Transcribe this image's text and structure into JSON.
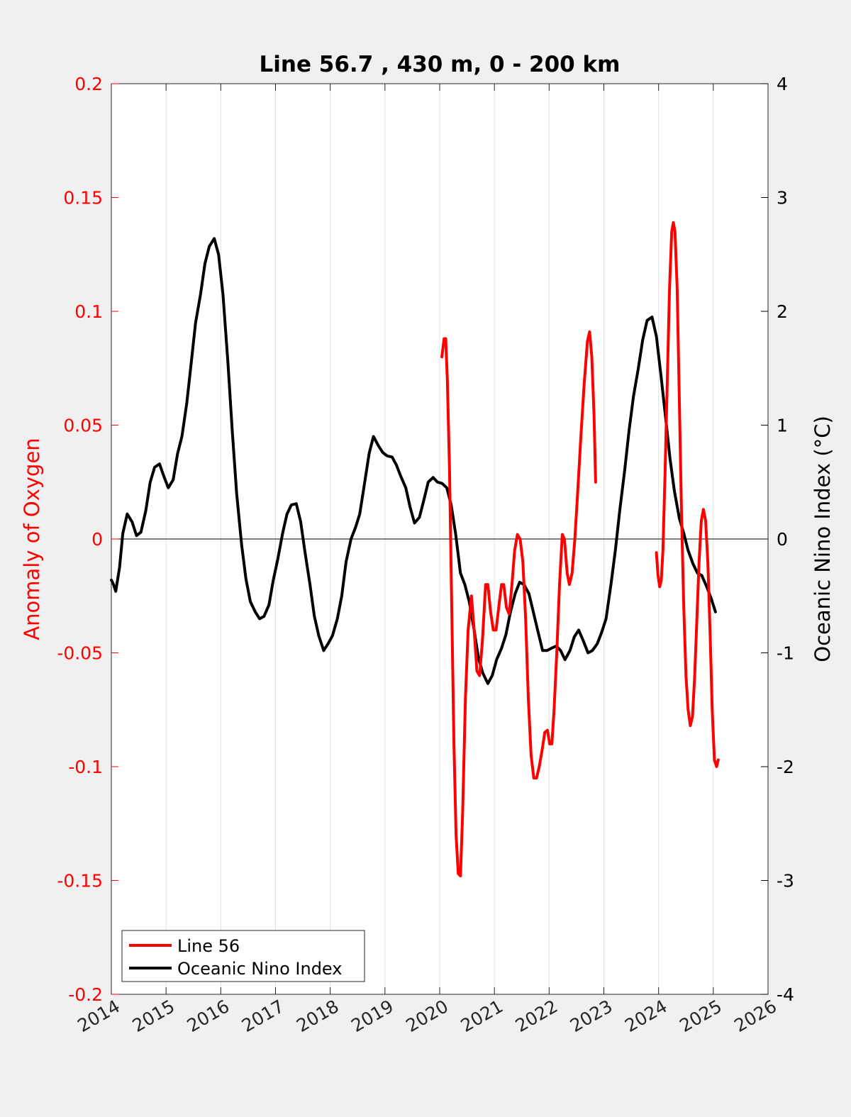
{
  "chart_data": {
    "type": "line",
    "title": "Line 56.7 , 430 m, 0 - 200 km",
    "xlabel": "",
    "ylabel_left": "Anomaly of Oxygen",
    "ylabel_right": "Oceanic Nino Index (°C)",
    "xlim": [
      2014,
      2026
    ],
    "ylim_left": [
      -0.2,
      0.2
    ],
    "ylim_right": [
      -4,
      4
    ],
    "x_ticks": [
      "2014",
      "2015",
      "2016",
      "2017",
      "2018",
      "2019",
      "2020",
      "2021",
      "2022",
      "2023",
      "2024",
      "2025",
      "2026"
    ],
    "y_left_ticks": [
      "0.2",
      "0.15",
      "0.1",
      "0.05",
      "0",
      "-0.05",
      "-0.1",
      "-0.15",
      "-0.2"
    ],
    "y_right_ticks": [
      "4",
      "3",
      "2",
      "1",
      "0",
      "-1",
      "-2",
      "-3",
      "-4"
    ],
    "grid": "vertical",
    "legend_position": "bottom-left",
    "colors": {
      "line56": "#ff0000",
      "oni": "#000000",
      "left_axis": "#ff0000",
      "right_axis": "#000000"
    },
    "series": [
      {
        "name": "Line 56",
        "axis": "left",
        "segments": [
          [
            [
              2020.04,
              0.08
            ],
            [
              2020.08,
              0.088
            ],
            [
              2020.11,
              0.088
            ],
            [
              2020.14,
              0.07
            ],
            [
              2020.18,
              0.03
            ],
            [
              2020.22,
              -0.03
            ],
            [
              2020.26,
              -0.09
            ],
            [
              2020.3,
              -0.13
            ],
            [
              2020.34,
              -0.147
            ],
            [
              2020.38,
              -0.148
            ],
            [
              2020.42,
              -0.12
            ],
            [
              2020.47,
              -0.07
            ],
            [
              2020.52,
              -0.04
            ],
            [
              2020.58,
              -0.025
            ],
            [
              2020.63,
              -0.04
            ],
            [
              2020.68,
              -0.058
            ],
            [
              2020.73,
              -0.06
            ],
            [
              2020.78,
              -0.045
            ],
            [
              2020.84,
              -0.02
            ],
            [
              2020.88,
              -0.02
            ],
            [
              2020.93,
              -0.032
            ],
            [
              2020.98,
              -0.04
            ],
            [
              2021.03,
              -0.04
            ],
            [
              2021.08,
              -0.03
            ],
            [
              2021.13,
              -0.02
            ],
            [
              2021.17,
              -0.02
            ],
            [
              2021.22,
              -0.03
            ],
            [
              2021.27,
              -0.033
            ],
            [
              2021.32,
              -0.02
            ],
            [
              2021.37,
              -0.005
            ],
            [
              2021.42,
              0.002
            ],
            [
              2021.47,
              0.0
            ],
            [
              2021.52,
              -0.01
            ],
            [
              2021.57,
              -0.035
            ],
            [
              2021.62,
              -0.07
            ],
            [
              2021.67,
              -0.095
            ],
            [
              2021.72,
              -0.105
            ],
            [
              2021.77,
              -0.105
            ],
            [
              2021.82,
              -0.1
            ],
            [
              2021.87,
              -0.093
            ],
            [
              2021.92,
              -0.085
            ],
            [
              2021.97,
              -0.084
            ],
            [
              2022.01,
              -0.09
            ],
            [
              2022.05,
              -0.09
            ],
            [
              2022.09,
              -0.075
            ],
            [
              2022.14,
              -0.05
            ],
            [
              2022.19,
              -0.02
            ],
            [
              2022.24,
              0.002
            ],
            [
              2022.28,
              0.0
            ],
            [
              2022.33,
              -0.015
            ],
            [
              2022.37,
              -0.02
            ],
            [
              2022.42,
              -0.015
            ],
            [
              2022.47,
              0.0
            ],
            [
              2022.52,
              0.02
            ],
            [
              2022.58,
              0.045
            ],
            [
              2022.64,
              0.068
            ],
            [
              2022.7,
              0.087
            ],
            [
              2022.74,
              0.091
            ],
            [
              2022.78,
              0.08
            ],
            [
              2022.82,
              0.055
            ],
            [
              2022.85,
              0.025
            ]
          ],
          [
            [
              2023.96,
              -0.006
            ],
            [
              2023.99,
              -0.016
            ],
            [
              2024.02,
              -0.021
            ],
            [
              2024.05,
              -0.018
            ],
            [
              2024.08,
              -0.005
            ],
            [
              2024.12,
              0.03
            ],
            [
              2024.16,
              0.07
            ],
            [
              2024.2,
              0.11
            ],
            [
              2024.24,
              0.135
            ],
            [
              2024.27,
              0.139
            ],
            [
              2024.3,
              0.135
            ],
            [
              2024.34,
              0.11
            ],
            [
              2024.38,
              0.06
            ],
            [
              2024.42,
              0.01
            ],
            [
              2024.46,
              -0.03
            ],
            [
              2024.5,
              -0.06
            ],
            [
              2024.54,
              -0.075
            ],
            [
              2024.58,
              -0.082
            ],
            [
              2024.62,
              -0.078
            ],
            [
              2024.66,
              -0.06
            ],
            [
              2024.7,
              -0.035
            ],
            [
              2024.74,
              -0.01
            ],
            [
              2024.78,
              0.008
            ],
            [
              2024.82,
              0.013
            ],
            [
              2024.86,
              0.008
            ],
            [
              2024.9,
              -0.01
            ],
            [
              2024.94,
              -0.04
            ],
            [
              2024.98,
              -0.075
            ],
            [
              2025.02,
              -0.097
            ],
            [
              2025.06,
              -0.1
            ],
            [
              2025.09,
              -0.097
            ]
          ]
        ]
      },
      {
        "name": "Oceanic Nino Index",
        "axis": "right",
        "segments": [
          [
            [
              2014.0,
              -0.36
            ],
            [
              2014.04,
              -0.4
            ],
            [
              2014.08,
              -0.46
            ],
            [
              2014.15,
              -0.25
            ],
            [
              2014.21,
              0.05
            ],
            [
              2014.29,
              0.22
            ],
            [
              2014.38,
              0.15
            ],
            [
              2014.46,
              0.03
            ],
            [
              2014.54,
              0.06
            ],
            [
              2014.63,
              0.25
            ],
            [
              2014.71,
              0.5
            ],
            [
              2014.79,
              0.63
            ],
            [
              2014.88,
              0.66
            ],
            [
              2014.96,
              0.55
            ],
            [
              2015.04,
              0.45
            ],
            [
              2015.13,
              0.52
            ],
            [
              2015.21,
              0.75
            ],
            [
              2015.29,
              0.9
            ],
            [
              2015.38,
              1.2
            ],
            [
              2015.46,
              1.55
            ],
            [
              2015.54,
              1.9
            ],
            [
              2015.63,
              2.15
            ],
            [
              2015.71,
              2.42
            ],
            [
              2015.79,
              2.57
            ],
            [
              2015.88,
              2.64
            ],
            [
              2015.96,
              2.5
            ],
            [
              2016.04,
              2.15
            ],
            [
              2016.13,
              1.55
            ],
            [
              2016.21,
              0.95
            ],
            [
              2016.29,
              0.4
            ],
            [
              2016.38,
              -0.05
            ],
            [
              2016.46,
              -0.35
            ],
            [
              2016.54,
              -0.55
            ],
            [
              2016.63,
              -0.64
            ],
            [
              2016.71,
              -0.7
            ],
            [
              2016.79,
              -0.68
            ],
            [
              2016.88,
              -0.58
            ],
            [
              2016.96,
              -0.36
            ],
            [
              2017.04,
              -0.18
            ],
            [
              2017.13,
              0.05
            ],
            [
              2017.21,
              0.22
            ],
            [
              2017.29,
              0.3
            ],
            [
              2017.38,
              0.31
            ],
            [
              2017.46,
              0.15
            ],
            [
              2017.54,
              -0.12
            ],
            [
              2017.63,
              -0.4
            ],
            [
              2017.71,
              -0.68
            ],
            [
              2017.79,
              -0.85
            ],
            [
              2017.88,
              -0.98
            ],
            [
              2017.96,
              -0.92
            ],
            [
              2018.04,
              -0.85
            ],
            [
              2018.13,
              -0.7
            ],
            [
              2018.21,
              -0.5
            ],
            [
              2018.29,
              -0.2
            ],
            [
              2018.38,
              0.0
            ],
            [
              2018.46,
              0.1
            ],
            [
              2018.54,
              0.22
            ],
            [
              2018.63,
              0.5
            ],
            [
              2018.71,
              0.75
            ],
            [
              2018.79,
              0.9
            ],
            [
              2018.88,
              0.82
            ],
            [
              2018.96,
              0.76
            ],
            [
              2019.04,
              0.73
            ],
            [
              2019.13,
              0.72
            ],
            [
              2019.21,
              0.65
            ],
            [
              2019.29,
              0.55
            ],
            [
              2019.38,
              0.45
            ],
            [
              2019.46,
              0.28
            ],
            [
              2019.54,
              0.14
            ],
            [
              2019.63,
              0.19
            ],
            [
              2019.71,
              0.34
            ],
            [
              2019.79,
              0.5
            ],
            [
              2019.88,
              0.54
            ],
            [
              2019.96,
              0.5
            ],
            [
              2020.04,
              0.49
            ],
            [
              2020.13,
              0.45
            ],
            [
              2020.21,
              0.3
            ],
            [
              2020.29,
              0.05
            ],
            [
              2020.38,
              -0.3
            ],
            [
              2020.46,
              -0.4
            ],
            [
              2020.54,
              -0.55
            ],
            [
              2020.63,
              -0.8
            ],
            [
              2020.71,
              -1.05
            ],
            [
              2020.79,
              -1.18
            ],
            [
              2020.88,
              -1.27
            ],
            [
              2020.96,
              -1.2
            ],
            [
              2021.04,
              -1.06
            ],
            [
              2021.13,
              -0.96
            ],
            [
              2021.21,
              -0.84
            ],
            [
              2021.29,
              -0.65
            ],
            [
              2021.38,
              -0.48
            ],
            [
              2021.46,
              -0.38
            ],
            [
              2021.54,
              -0.4
            ],
            [
              2021.63,
              -0.48
            ],
            [
              2021.71,
              -0.64
            ],
            [
              2021.79,
              -0.8
            ],
            [
              2021.88,
              -0.98
            ],
            [
              2021.96,
              -0.98
            ],
            [
              2022.04,
              -0.96
            ],
            [
              2022.13,
              -0.94
            ],
            [
              2022.21,
              -0.98
            ],
            [
              2022.29,
              -1.06
            ],
            [
              2022.38,
              -0.98
            ],
            [
              2022.46,
              -0.86
            ],
            [
              2022.54,
              -0.8
            ],
            [
              2022.63,
              -0.9
            ],
            [
              2022.71,
              -1.0
            ],
            [
              2022.79,
              -0.98
            ],
            [
              2022.88,
              -0.92
            ],
            [
              2022.96,
              -0.82
            ],
            [
              2023.04,
              -0.7
            ],
            [
              2023.13,
              -0.4
            ],
            [
              2023.21,
              -0.1
            ],
            [
              2023.29,
              0.25
            ],
            [
              2023.38,
              0.6
            ],
            [
              2023.46,
              0.95
            ],
            [
              2023.54,
              1.25
            ],
            [
              2023.63,
              1.5
            ],
            [
              2023.71,
              1.75
            ],
            [
              2023.79,
              1.92
            ],
            [
              2023.88,
              1.95
            ],
            [
              2023.96,
              1.78
            ],
            [
              2024.04,
              1.45
            ],
            [
              2024.13,
              1.06
            ],
            [
              2024.21,
              0.7
            ],
            [
              2024.29,
              0.42
            ],
            [
              2024.38,
              0.18
            ],
            [
              2024.46,
              0.05
            ],
            [
              2024.54,
              -0.1
            ],
            [
              2024.63,
              -0.22
            ],
            [
              2024.71,
              -0.3
            ],
            [
              2024.79,
              -0.32
            ],
            [
              2024.88,
              -0.42
            ],
            [
              2024.96,
              -0.52
            ],
            [
              2025.04,
              -0.64
            ]
          ]
        ]
      }
    ]
  }
}
